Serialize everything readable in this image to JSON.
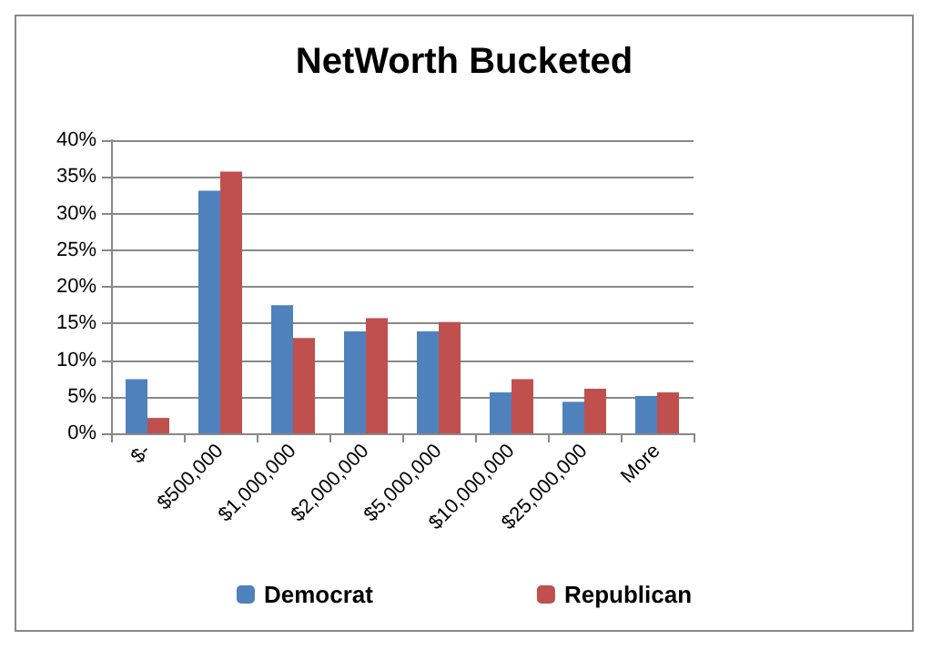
{
  "chart_data": {
    "type": "bar",
    "title": "NetWorth Bucketed",
    "categories": [
      "$-",
      "$500,000",
      "$1,000,000",
      "$2,000,000",
      "$5,000,000",
      "$10,000,000",
      "$25,000,000",
      "More"
    ],
    "series": [
      {
        "name": "Democrat",
        "color": "#4f81bd",
        "values": [
          7.4,
          33.1,
          17.5,
          13.9,
          13.9,
          5.6,
          4.3,
          5.1
        ]
      },
      {
        "name": "Republican",
        "color": "#c0504d",
        "values": [
          2.1,
          35.7,
          13.0,
          15.7,
          15.2,
          7.4,
          6.1,
          5.6
        ]
      }
    ],
    "ylim": [
      0,
      40
    ],
    "yticks": [
      {
        "value": 0,
        "label": "0%"
      },
      {
        "value": 5,
        "label": "5%"
      },
      {
        "value": 10,
        "label": "10%"
      },
      {
        "value": 15,
        "label": "15%"
      },
      {
        "value": 20,
        "label": "20%"
      },
      {
        "value": 25,
        "label": "25%"
      },
      {
        "value": 30,
        "label": "30%"
      },
      {
        "value": 35,
        "label": "35%"
      },
      {
        "value": 40,
        "label": "40%"
      }
    ],
    "grid": "y",
    "legend": "bottom"
  }
}
